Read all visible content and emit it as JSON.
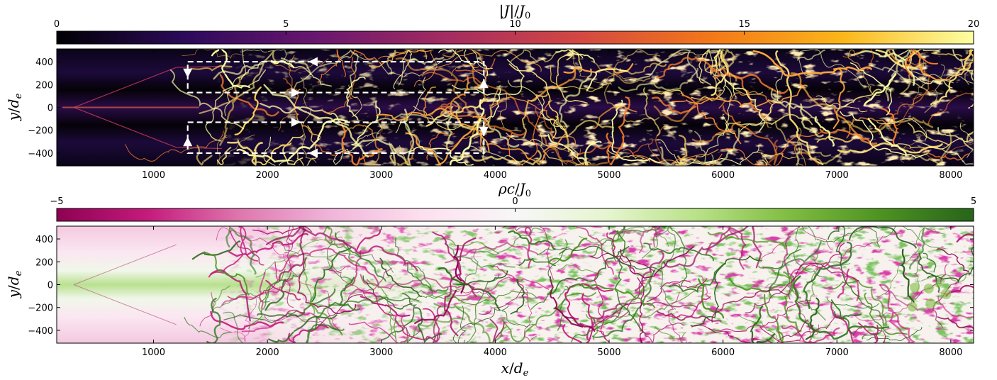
{
  "chart_data": [
    {
      "type": "heatmap",
      "panel": "top",
      "colorbar": {
        "label": "|J|/J0",
        "label_parts": {
          "bar1": "|",
          "J": "J",
          "bar2": "|",
          "slash": "/",
          "J0_base": "J",
          "J0_sub": "0"
        },
        "range": [
          0,
          20
        ],
        "ticks": [
          0,
          5,
          10,
          15,
          20
        ],
        "tick_labels": [
          "0",
          "5",
          "10",
          "15",
          "20"
        ],
        "colormap": "inferno",
        "colors": [
          "#000004",
          "#2d0a5b",
          "#6a176e",
          "#a52c60",
          "#d44842",
          "#f37819",
          "#fbb61a",
          "#fcffa4"
        ],
        "placement": "top"
      },
      "xlim": [
        150,
        8200
      ],
      "ylim": [
        -512,
        512
      ],
      "xticks": [
        1000,
        2000,
        3000,
        4000,
        5000,
        6000,
        7000,
        8000
      ],
      "xtick_labels": [
        "1000",
        "2000",
        "3000",
        "4000",
        "5000",
        "6000",
        "7000",
        "8000"
      ],
      "yticks": [
        400,
        200,
        0,
        -200,
        -400
      ],
      "ytick_labels": [
        "400",
        "200",
        "0",
        "−200",
        "−400"
      ],
      "ylabel": "y/de",
      "ylabel_parts": {
        "y": "y",
        "slash": "/",
        "d": "d",
        "sub": "e"
      },
      "annotation_loops": [
        {
          "x": [
            1300,
            3900
          ],
          "y": [
            130,
            400
          ],
          "direction": "clockwise"
        },
        {
          "x": [
            1300,
            3900
          ],
          "y": [
            -400,
            -130
          ],
          "direction": "counterclockwise"
        }
      ],
      "arrow_markers": [
        {
          "x": 1300,
          "y": 300,
          "dir": "down"
        },
        {
          "x": 2400,
          "y": 400,
          "dir": "left"
        },
        {
          "x": 2250,
          "y": 130,
          "dir": "right"
        },
        {
          "x": 3900,
          "y": 210,
          "dir": "up"
        },
        {
          "x": 1300,
          "y": -300,
          "dir": "up"
        },
        {
          "x": 2400,
          "y": -400,
          "dir": "left"
        },
        {
          "x": 2250,
          "y": -130,
          "dir": "right"
        },
        {
          "x": 3900,
          "y": -210,
          "dir": "down"
        }
      ]
    },
    {
      "type": "heatmap",
      "panel": "bottom",
      "colorbar": {
        "label": "ρc/J0",
        "label_parts": {
          "rho": "ρ",
          "c": "c",
          "slash": "/",
          "J0_base": "J",
          "J0_sub": "0"
        },
        "range": [
          -5,
          5
        ],
        "ticks": [
          -5,
          0,
          5
        ],
        "tick_labels": [
          "−5",
          "0",
          "5"
        ],
        "colormap": "PiYG",
        "colors": [
          "#8e0152",
          "#c51b7d",
          "#de77ae",
          "#f1b6da",
          "#fde0ef",
          "#f7f7f7",
          "#e6f5d0",
          "#b8e186",
          "#7fbc41",
          "#4d9221",
          "#276419"
        ],
        "placement": "top"
      },
      "xlim": [
        150,
        8200
      ],
      "ylim": [
        -512,
        512
      ],
      "xticks": [
        1000,
        2000,
        3000,
        4000,
        5000,
        6000,
        7000,
        8000
      ],
      "xtick_labels": [
        "1000",
        "2000",
        "3000",
        "4000",
        "5000",
        "6000",
        "7000",
        "8000"
      ],
      "yticks": [
        400,
        200,
        0,
        -200,
        -400
      ],
      "ytick_labels": [
        "400",
        "200",
        "0",
        "−200",
        "−400"
      ],
      "ylabel": "y/de",
      "ylabel_parts": {
        "y": "y",
        "slash": "/",
        "d": "d",
        "sub": "e"
      },
      "xlabel": "x/de",
      "xlabel_parts": {
        "x": "x",
        "slash": "/",
        "d": "d",
        "sub": "e"
      }
    }
  ]
}
